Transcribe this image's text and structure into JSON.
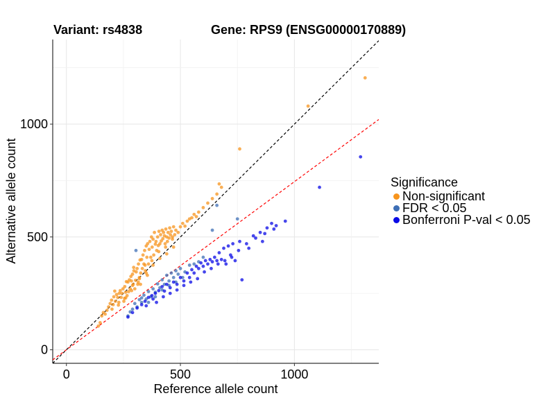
{
  "chart_data": {
    "type": "scatter",
    "title_left": "Variant: rs4838",
    "title_right": "Gene: RPS9 (ENSG00000170889)",
    "xlabel": "Reference allele count",
    "ylabel": "Alternative allele count",
    "xlim": [
      -60,
      1370
    ],
    "ylim": [
      -60,
      1375
    ],
    "xticks": [
      0,
      500,
      1000
    ],
    "yticks": [
      0,
      500,
      1000
    ],
    "grid": true,
    "reference_lines": [
      {
        "name": "identity",
        "slope": 1.0,
        "intercept": 0,
        "color": "#000000",
        "style": "dashed"
      },
      {
        "name": "bias",
        "slope": 0.745,
        "intercept": 0,
        "color": "#ff0000",
        "style": "dashed"
      }
    ],
    "legend": {
      "title": "Significance",
      "position": "right",
      "entries": [
        {
          "label": "Non-significant",
          "color": "#f7941d"
        },
        {
          "label": "FDR < 0.05",
          "color": "#3d6fb6"
        },
        {
          "label": "Bonferroni P-val < 0.05",
          "color": "#0a0ae6"
        }
      ]
    },
    "series": [
      {
        "name": "Non-significant",
        "color": "#f7941d",
        "points": [
          [
            140,
            105
          ],
          [
            148,
            120
          ],
          [
            155,
            150
          ],
          [
            162,
            165
          ],
          [
            170,
            158
          ],
          [
            178,
            175
          ],
          [
            185,
            190
          ],
          [
            192,
            205
          ],
          [
            198,
            220
          ],
          [
            200,
            180
          ],
          [
            205,
            200
          ],
          [
            208,
            235
          ],
          [
            212,
            260
          ],
          [
            215,
            215
          ],
          [
            220,
            245
          ],
          [
            225,
            232
          ],
          [
            228,
            198
          ],
          [
            232,
            250
          ],
          [
            236,
            262
          ],
          [
            240,
            232
          ],
          [
            244,
            250
          ],
          [
            248,
            270
          ],
          [
            252,
            215
          ],
          [
            256,
            280
          ],
          [
            260,
            230
          ],
          [
            263,
            302
          ],
          [
            266,
            240
          ],
          [
            270,
            300
          ],
          [
            273,
            258
          ],
          [
            276,
            310
          ],
          [
            280,
            270
          ],
          [
            283,
            325
          ],
          [
            286,
            262
          ],
          [
            290,
            335
          ],
          [
            293,
            290
          ],
          [
            296,
            350
          ],
          [
            300,
            270
          ],
          [
            303,
            308
          ],
          [
            306,
            345
          ],
          [
            310,
            360
          ],
          [
            313,
            290
          ],
          [
            316,
            380
          ],
          [
            320,
            320
          ],
          [
            323,
            398
          ],
          [
            326,
            340
          ],
          [
            330,
            400
          ],
          [
            333,
            360
          ],
          [
            336,
            420
          ],
          [
            340,
            380
          ],
          [
            343,
            440
          ],
          [
            346,
            350
          ],
          [
            350,
            460
          ],
          [
            353,
            410
          ],
          [
            356,
            470
          ],
          [
            360,
            380
          ],
          [
            363,
            445
          ],
          [
            366,
            480
          ],
          [
            370,
            410
          ],
          [
            373,
            500
          ],
          [
            376,
            455
          ],
          [
            380,
            490
          ],
          [
            383,
            420
          ],
          [
            386,
            520
          ],
          [
            390,
            468
          ],
          [
            393,
            480
          ],
          [
            396,
            440
          ],
          [
            400,
            500
          ],
          [
            403,
            462
          ],
          [
            406,
            525
          ],
          [
            410,
            470
          ],
          [
            413,
            510
          ],
          [
            416,
            482
          ],
          [
            420,
            530
          ],
          [
            423,
            492
          ],
          [
            426,
            520
          ],
          [
            430,
            505
          ],
          [
            433,
            470
          ],
          [
            436,
            535
          ],
          [
            440,
            500
          ],
          [
            443,
            480
          ],
          [
            446,
            520
          ],
          [
            450,
            495
          ],
          [
            453,
            540
          ],
          [
            456,
            510
          ],
          [
            460,
            525
          ],
          [
            465,
            490
          ],
          [
            470,
            545
          ],
          [
            475,
            510
          ],
          [
            480,
            530
          ],
          [
            490,
            520
          ],
          [
            500,
            545
          ],
          [
            510,
            560
          ],
          [
            520,
            548
          ],
          [
            530,
            570
          ],
          [
            540,
            580
          ],
          [
            550,
            585
          ],
          [
            560,
            600
          ],
          [
            570,
            590
          ],
          [
            580,
            610
          ],
          [
            600,
            630
          ],
          [
            620,
            650
          ],
          [
            640,
            670
          ],
          [
            660,
            690
          ],
          [
            670,
            735
          ],
          [
            680,
            720
          ],
          [
            760,
            890
          ],
          [
            1060,
            1080
          ],
          [
            1310,
            1205
          ],
          [
            230,
            210
          ],
          [
            260,
            255
          ],
          [
            290,
            285
          ],
          [
            320,
            315
          ],
          [
            350,
            340
          ],
          [
            380,
            375
          ],
          [
            410,
            405
          ],
          [
            440,
            425
          ],
          [
            470,
            455
          ],
          [
            255,
            228
          ],
          [
            285,
            305
          ],
          [
            315,
            300
          ],
          [
            345,
            375
          ],
          [
            375,
            395
          ],
          [
            405,
            435
          ],
          [
            435,
            455
          ],
          [
            465,
            500
          ],
          [
            295,
            365
          ],
          [
            325,
            290
          ],
          [
            355,
            330
          ]
        ]
      },
      {
        "name": "FDR < 0.05",
        "color": "#3d6fb6",
        "points": [
          [
            270,
            150
          ],
          [
            280,
            168
          ],
          [
            290,
            180
          ],
          [
            300,
            205
          ],
          [
            305,
            440
          ],
          [
            310,
            190
          ],
          [
            320,
            222
          ],
          [
            330,
            210
          ],
          [
            340,
            242
          ],
          [
            350,
            225
          ],
          [
            360,
            258
          ],
          [
            370,
            235
          ],
          [
            380,
            270
          ],
          [
            390,
            255
          ],
          [
            400,
            292
          ],
          [
            410,
            275
          ],
          [
            420,
            310
          ],
          [
            430,
            290
          ],
          [
            440,
            330
          ],
          [
            450,
            305
          ],
          [
            460,
            340
          ],
          [
            470,
            320
          ],
          [
            480,
            350
          ],
          [
            490,
            335
          ],
          [
            500,
            360
          ],
          [
            520,
            345
          ],
          [
            540,
            375
          ],
          [
            560,
            380
          ],
          [
            580,
            390
          ],
          [
            600,
            410
          ],
          [
            640,
            530
          ],
          [
            660,
            640
          ],
          [
            750,
            580
          ],
          [
            330,
            230
          ],
          [
            360,
            210
          ],
          [
            390,
            235
          ],
          [
            420,
            265
          ],
          [
            450,
            285
          ],
          [
            480,
            300
          ],
          [
            510,
            320
          ]
        ]
      },
      {
        "name": "Bonferroni P-val < 0.05",
        "color": "#0a0ae6",
        "points": [
          [
            270,
            145
          ],
          [
            290,
            165
          ],
          [
            310,
            185
          ],
          [
            330,
            200
          ],
          [
            345,
            215
          ],
          [
            360,
            232
          ],
          [
            375,
            240
          ],
          [
            390,
            250
          ],
          [
            405,
            262
          ],
          [
            420,
            280
          ],
          [
            430,
            260
          ],
          [
            440,
            290
          ],
          [
            455,
            275
          ],
          [
            470,
            300
          ],
          [
            485,
            290
          ],
          [
            500,
            320
          ],
          [
            515,
            305
          ],
          [
            530,
            340
          ],
          [
            540,
            320
          ],
          [
            550,
            355
          ],
          [
            560,
            340
          ],
          [
            570,
            370
          ],
          [
            580,
            360
          ],
          [
            590,
            385
          ],
          [
            600,
            370
          ],
          [
            610,
            395
          ],
          [
            620,
            380
          ],
          [
            630,
            400
          ],
          [
            640,
            390
          ],
          [
            650,
            410
          ],
          [
            660,
            395
          ],
          [
            670,
            430
          ],
          [
            680,
            400
          ],
          [
            690,
            450
          ],
          [
            700,
            380
          ],
          [
            710,
            460
          ],
          [
            720,
            420
          ],
          [
            730,
            470
          ],
          [
            740,
            395
          ],
          [
            760,
            480
          ],
          [
            770,
            310
          ],
          [
            800,
            450
          ],
          [
            820,
            505
          ],
          [
            850,
            520
          ],
          [
            860,
            480
          ],
          [
            880,
            540
          ],
          [
            900,
            560
          ],
          [
            920,
            550
          ],
          [
            960,
            570
          ],
          [
            1110,
            720
          ],
          [
            1290,
            855
          ],
          [
            395,
            210
          ],
          [
            425,
            235
          ],
          [
            455,
            250
          ],
          [
            485,
            265
          ],
          [
            515,
            285
          ],
          [
            545,
            300
          ],
          [
            575,
            315
          ],
          [
            605,
            345
          ],
          [
            635,
            360
          ],
          [
            665,
            380
          ],
          [
            695,
            395
          ],
          [
            725,
            410
          ],
          [
            755,
            440
          ],
          [
            790,
            470
          ],
          [
            830,
            495
          ],
          [
            870,
            515
          ],
          [
            910,
            535
          ],
          [
            350,
            195
          ],
          [
            380,
            225
          ]
        ]
      }
    ]
  }
}
